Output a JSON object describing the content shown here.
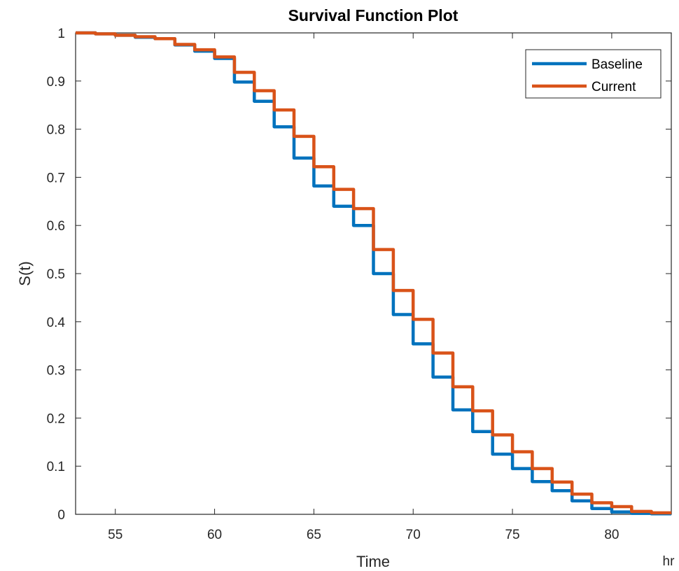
{
  "chart_data": {
    "type": "line",
    "title": "Survival Function Plot",
    "xlabel": "Time",
    "ylabel": "S(t)",
    "x_unit": "hr",
    "xlim": [
      53,
      83
    ],
    "ylim": [
      0,
      1
    ],
    "xticks": [
      55,
      60,
      65,
      70,
      75,
      80
    ],
    "yticks": [
      0,
      0.1,
      0.2,
      0.3,
      0.4,
      0.5,
      0.6,
      0.7,
      0.8,
      0.9,
      1
    ],
    "grid": false,
    "legend_position": "top-right",
    "series": [
      {
        "name": "Baseline",
        "color": "#0072BD",
        "x": [
          53,
          54,
          55,
          56,
          57,
          58,
          59,
          60,
          61,
          62,
          63,
          64,
          65,
          66,
          67,
          68,
          69,
          70,
          71,
          72,
          73,
          74,
          75,
          76,
          77,
          78,
          79,
          80,
          81,
          82,
          83
        ],
        "y": [
          1.0,
          0.998,
          0.995,
          0.991,
          0.988,
          0.975,
          0.962,
          0.947,
          0.898,
          0.858,
          0.805,
          0.74,
          0.682,
          0.64,
          0.6,
          0.5,
          0.415,
          0.354,
          0.285,
          0.217,
          0.172,
          0.125,
          0.095,
          0.068,
          0.049,
          0.028,
          0.012,
          0.005,
          0.002,
          0.001,
          0.001
        ]
      },
      {
        "name": "Current",
        "color": "#D95319",
        "x": [
          53,
          54,
          55,
          56,
          57,
          58,
          59,
          60,
          61,
          62,
          63,
          64,
          65,
          66,
          67,
          68,
          69,
          70,
          71,
          72,
          73,
          74,
          75,
          76,
          77,
          78,
          79,
          80,
          81,
          82,
          83
        ],
        "y": [
          1.0,
          0.998,
          0.995,
          0.992,
          0.988,
          0.976,
          0.965,
          0.95,
          0.918,
          0.88,
          0.84,
          0.785,
          0.722,
          0.675,
          0.635,
          0.55,
          0.465,
          0.405,
          0.335,
          0.265,
          0.215,
          0.165,
          0.13,
          0.095,
          0.067,
          0.042,
          0.024,
          0.016,
          0.006,
          0.003,
          0.003
        ]
      }
    ]
  }
}
